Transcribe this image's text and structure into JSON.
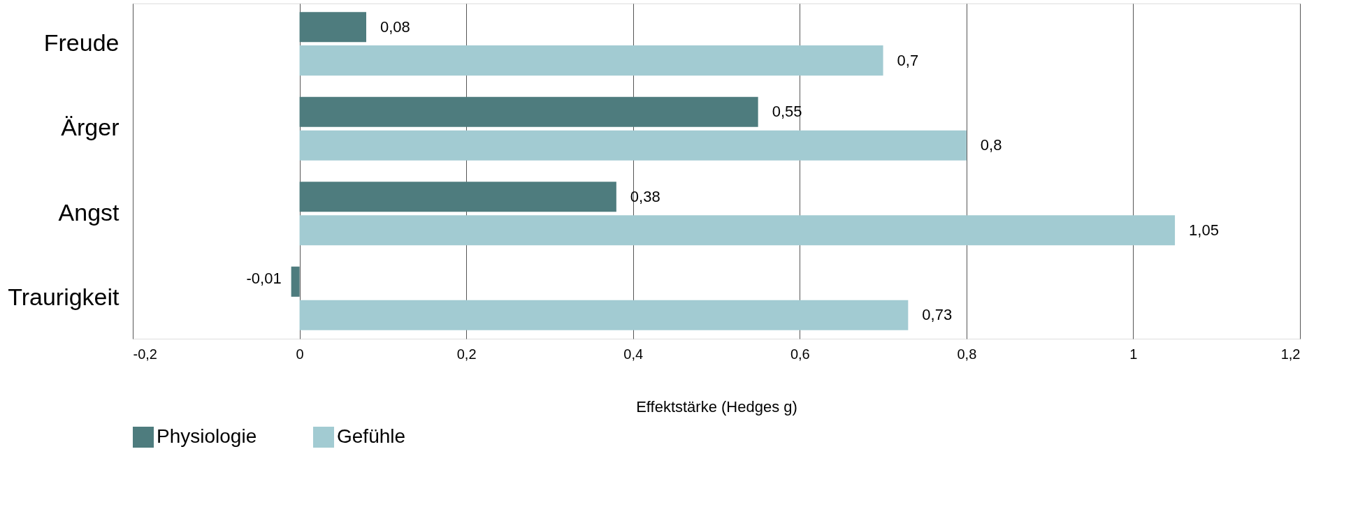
{
  "chart_data": {
    "type": "bar",
    "orientation": "horizontal",
    "xlabel": "Effektstärke (Hedges g)",
    "categories": [
      "Freude",
      "Ärger",
      "Angst",
      "Traurigkeit"
    ],
    "series": [
      {
        "name": "Physiologie",
        "color": "#4e7c7e",
        "values": [
          0.08,
          0.55,
          0.38,
          -0.01
        ],
        "value_labels": [
          "0,08",
          "0,55",
          "0,38",
          "-0,01"
        ]
      },
      {
        "name": "Gefühle",
        "color": "#a2cbd2",
        "values": [
          0.7,
          0.8,
          1.05,
          0.73
        ],
        "value_labels": [
          "0,7",
          "0,8",
          "1,05",
          "0,73"
        ]
      }
    ],
    "xlim": [
      -0.2,
      1.2
    ],
    "xticks": [
      {
        "value": -0.2,
        "label": "-0,2"
      },
      0,
      {
        "value": 0.2,
        "label": "0,2"
      },
      {
        "value": 0.4,
        "label": "0,4"
      },
      {
        "value": 0.6,
        "label": "0,6"
      },
      {
        "value": 0.8,
        "label": "0,8"
      },
      1,
      {
        "value": 1.2,
        "label": "1,2"
      }
    ],
    "grid": "x",
    "legend": "bottom"
  }
}
